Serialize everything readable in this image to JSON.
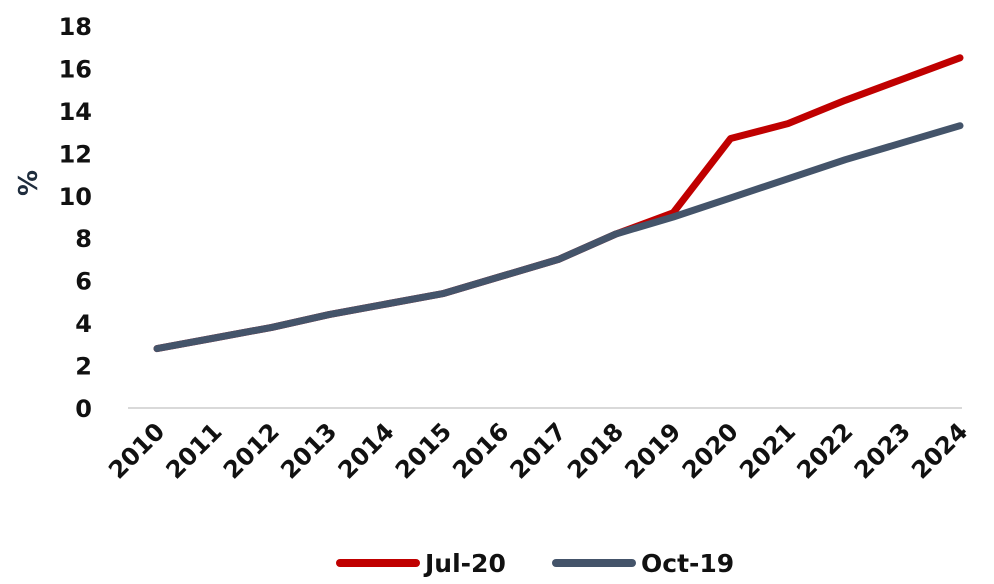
{
  "chart_data": {
    "type": "line",
    "x": [
      "2010",
      "2011",
      "2012",
      "2013",
      "2014",
      "2015",
      "2016",
      "2017",
      "2018",
      "2019",
      "2020",
      "2021",
      "2022",
      "2023",
      "2024"
    ],
    "series": [
      {
        "name": "Jul-20",
        "color": "#c00000",
        "values": [
          2.8,
          3.3,
          3.8,
          4.4,
          4.9,
          5.4,
          6.2,
          7.0,
          8.2,
          9.2,
          12.7,
          13.4,
          14.5,
          15.5,
          16.5
        ]
      },
      {
        "name": "Oct-19",
        "color": "#44546a",
        "values": [
          2.8,
          3.3,
          3.8,
          4.4,
          4.9,
          5.4,
          6.2,
          7.0,
          8.2,
          9.0,
          9.9,
          10.8,
          11.7,
          12.5,
          13.3
        ]
      }
    ],
    "ylabel": "%",
    "xlabel": "",
    "title": "",
    "ylim": [
      0,
      18
    ],
    "yticks": [
      0,
      2,
      4,
      6,
      8,
      10,
      12,
      14,
      16,
      18
    ],
    "grid": false,
    "legend": "bottom-center",
    "axis_color": "#d9d9d9"
  }
}
